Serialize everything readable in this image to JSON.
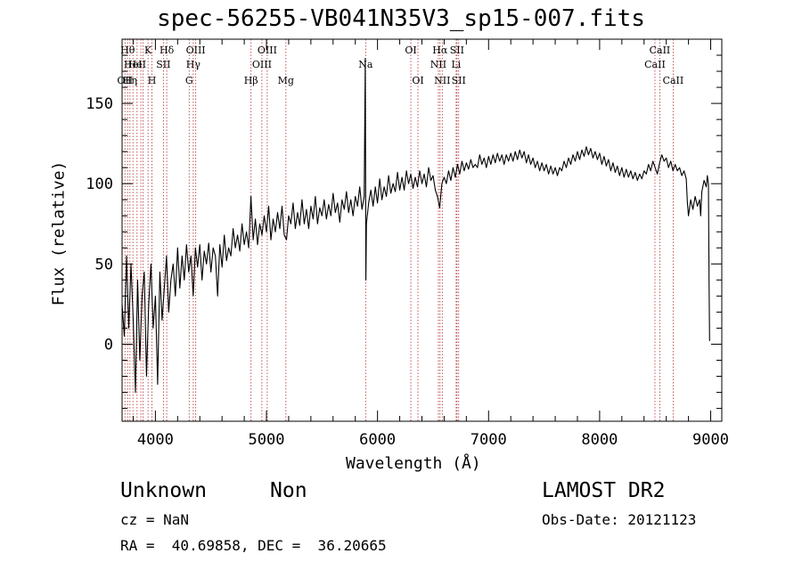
{
  "chart_data": {
    "type": "line",
    "title": "spec-56255-VB041N35V3_sp15-007.fits",
    "xlabel": "Wavelength (Å)",
    "ylabel": "Flux (relative)",
    "xlim": [
      3700,
      9100
    ],
    "ylim": [
      -48,
      190
    ],
    "xticks": [
      4000,
      5000,
      6000,
      7000,
      8000,
      9000
    ],
    "yticks": [
      0,
      50,
      100,
      150
    ],
    "grid": false,
    "line_color": "#000000",
    "marker_color": "#b03030",
    "series": [
      {
        "values": [
          [
            3700,
            25
          ],
          [
            3720,
            5
          ],
          [
            3740,
            55
          ],
          [
            3760,
            10
          ],
          [
            3780,
            50
          ],
          [
            3800,
            15
          ],
          [
            3820,
            -30
          ],
          [
            3840,
            40
          ],
          [
            3860,
            -10
          ],
          [
            3880,
            30
          ],
          [
            3900,
            45
          ],
          [
            3920,
            -20
          ],
          [
            3940,
            25
          ],
          [
            3960,
            50
          ],
          [
            3980,
            10
          ],
          [
            4000,
            30
          ],
          [
            4020,
            -25
          ],
          [
            4040,
            45
          ],
          [
            4060,
            15
          ],
          [
            4080,
            35
          ],
          [
            4100,
            55
          ],
          [
            4120,
            20
          ],
          [
            4140,
            40
          ],
          [
            4160,
            50
          ],
          [
            4180,
            30
          ],
          [
            4200,
            60
          ],
          [
            4220,
            35
          ],
          [
            4240,
            55
          ],
          [
            4260,
            40
          ],
          [
            4280,
            62
          ],
          [
            4300,
            45
          ],
          [
            4320,
            55
          ],
          [
            4340,
            30
          ],
          [
            4360,
            60
          ],
          [
            4380,
            48
          ],
          [
            4400,
            62
          ],
          [
            4420,
            40
          ],
          [
            4440,
            58
          ],
          [
            4460,
            50
          ],
          [
            4480,
            63
          ],
          [
            4500,
            45
          ],
          [
            4520,
            60
          ],
          [
            4540,
            55
          ],
          [
            4560,
            30
          ],
          [
            4580,
            62
          ],
          [
            4600,
            48
          ],
          [
            4620,
            68
          ],
          [
            4640,
            52
          ],
          [
            4660,
            60
          ],
          [
            4680,
            55
          ],
          [
            4700,
            72
          ],
          [
            4720,
            60
          ],
          [
            4740,
            68
          ],
          [
            4760,
            58
          ],
          [
            4780,
            75
          ],
          [
            4800,
            62
          ],
          [
            4820,
            70
          ],
          [
            4840,
            60
          ],
          [
            4860,
            92
          ],
          [
            4880,
            65
          ],
          [
            4900,
            78
          ],
          [
            4920,
            62
          ],
          [
            4940,
            75
          ],
          [
            4960,
            68
          ],
          [
            4980,
            80
          ],
          [
            5000,
            70
          ],
          [
            5020,
            86
          ],
          [
            5040,
            65
          ],
          [
            5060,
            78
          ],
          [
            5080,
            70
          ],
          [
            5100,
            82
          ],
          [
            5120,
            72
          ],
          [
            5140,
            86
          ],
          [
            5160,
            68
          ],
          [
            5180,
            65
          ],
          [
            5200,
            80
          ],
          [
            5220,
            75
          ],
          [
            5240,
            88
          ],
          [
            5260,
            72
          ],
          [
            5280,
            82
          ],
          [
            5300,
            74
          ],
          [
            5320,
            90
          ],
          [
            5340,
            75
          ],
          [
            5360,
            84
          ],
          [
            5380,
            72
          ],
          [
            5400,
            86
          ],
          [
            5420,
            78
          ],
          [
            5440,
            92
          ],
          [
            5460,
            75
          ],
          [
            5480,
            85
          ],
          [
            5500,
            80
          ],
          [
            5520,
            90
          ],
          [
            5540,
            78
          ],
          [
            5560,
            87
          ],
          [
            5580,
            80
          ],
          [
            5600,
            94
          ],
          [
            5620,
            82
          ],
          [
            5640,
            88
          ],
          [
            5660,
            76
          ],
          [
            5680,
            90
          ],
          [
            5700,
            84
          ],
          [
            5720,
            95
          ],
          [
            5740,
            82
          ],
          [
            5760,
            90
          ],
          [
            5780,
            80
          ],
          [
            5800,
            92
          ],
          [
            5820,
            86
          ],
          [
            5840,
            98
          ],
          [
            5860,
            84
          ],
          [
            5880,
            92
          ],
          [
            5890,
            178
          ],
          [
            5895,
            40
          ],
          [
            5900,
            75
          ],
          [
            5920,
            88
          ],
          [
            5940,
            96
          ],
          [
            5960,
            86
          ],
          [
            5980,
            98
          ],
          [
            6000,
            88
          ],
          [
            6020,
            103
          ],
          [
            6040,
            90
          ],
          [
            6060,
            98
          ],
          [
            6080,
            92
          ],
          [
            6100,
            105
          ],
          [
            6120,
            94
          ],
          [
            6140,
            100
          ],
          [
            6160,
            95
          ],
          [
            6180,
            107
          ],
          [
            6200,
            96
          ],
          [
            6220,
            104
          ],
          [
            6240,
            96
          ],
          [
            6260,
            108
          ],
          [
            6280,
            100
          ],
          [
            6300,
            106
          ],
          [
            6320,
            97
          ],
          [
            6340,
            104
          ],
          [
            6360,
            98
          ],
          [
            6380,
            108
          ],
          [
            6400,
            100
          ],
          [
            6420,
            106
          ],
          [
            6440,
            98
          ],
          [
            6460,
            110
          ],
          [
            6480,
            102
          ],
          [
            6500,
            105
          ],
          [
            6520,
            96
          ],
          [
            6540,
            92
          ],
          [
            6560,
            85
          ],
          [
            6580,
            100
          ],
          [
            6600,
            104
          ],
          [
            6620,
            100
          ],
          [
            6640,
            108
          ],
          [
            6660,
            102
          ],
          [
            6680,
            110
          ],
          [
            6700,
            104
          ],
          [
            6720,
            112
          ],
          [
            6740,
            106
          ],
          [
            6760,
            114
          ],
          [
            6780,
            108
          ],
          [
            6800,
            113
          ],
          [
            6820,
            109
          ],
          [
            6840,
            115
          ],
          [
            6860,
            110
          ],
          [
            6880,
            112
          ],
          [
            6900,
            110
          ],
          [
            6920,
            118
          ],
          [
            6940,
            112
          ],
          [
            6960,
            116
          ],
          [
            6980,
            110
          ],
          [
            7000,
            117
          ],
          [
            7020,
            112
          ],
          [
            7040,
            118
          ],
          [
            7060,
            113
          ],
          [
            7080,
            119
          ],
          [
            7100,
            114
          ],
          [
            7120,
            118
          ],
          [
            7140,
            112
          ],
          [
            7160,
            118
          ],
          [
            7180,
            114
          ],
          [
            7200,
            119
          ],
          [
            7220,
            114
          ],
          [
            7240,
            120
          ],
          [
            7260,
            115
          ],
          [
            7280,
            121
          ],
          [
            7300,
            116
          ],
          [
            7320,
            120
          ],
          [
            7340,
            113
          ],
          [
            7360,
            118
          ],
          [
            7380,
            112
          ],
          [
            7400,
            116
          ],
          [
            7420,
            110
          ],
          [
            7440,
            114
          ],
          [
            7460,
            108
          ],
          [
            7480,
            113
          ],
          [
            7500,
            108
          ],
          [
            7520,
            112
          ],
          [
            7540,
            106
          ],
          [
            7560,
            111
          ],
          [
            7580,
            106
          ],
          [
            7600,
            110
          ],
          [
            7620,
            105
          ],
          [
            7640,
            110
          ],
          [
            7660,
            108
          ],
          [
            7680,
            114
          ],
          [
            7700,
            110
          ],
          [
            7720,
            116
          ],
          [
            7740,
            112
          ],
          [
            7760,
            118
          ],
          [
            7780,
            114
          ],
          [
            7800,
            120
          ],
          [
            7820,
            115
          ],
          [
            7840,
            121
          ],
          [
            7860,
            117
          ],
          [
            7880,
            123
          ],
          [
            7900,
            118
          ],
          [
            7920,
            122
          ],
          [
            7940,
            116
          ],
          [
            7960,
            120
          ],
          [
            7980,
            115
          ],
          [
            8000,
            119
          ],
          [
            8020,
            112
          ],
          [
            8040,
            117
          ],
          [
            8060,
            111
          ],
          [
            8080,
            115
          ],
          [
            8100,
            108
          ],
          [
            8120,
            113
          ],
          [
            8140,
            107
          ],
          [
            8160,
            111
          ],
          [
            8180,
            105
          ],
          [
            8200,
            110
          ],
          [
            8220,
            104
          ],
          [
            8240,
            109
          ],
          [
            8260,
            104
          ],
          [
            8280,
            108
          ],
          [
            8300,
            103
          ],
          [
            8320,
            107
          ],
          [
            8340,
            102
          ],
          [
            8360,
            106
          ],
          [
            8380,
            103
          ],
          [
            8400,
            108
          ],
          [
            8420,
            106
          ],
          [
            8440,
            112
          ],
          [
            8460,
            108
          ],
          [
            8480,
            114
          ],
          [
            8500,
            110
          ],
          [
            8520,
            106
          ],
          [
            8540,
            113
          ],
          [
            8560,
            118
          ],
          [
            8580,
            114
          ],
          [
            8600,
            116
          ],
          [
            8620,
            110
          ],
          [
            8640,
            114
          ],
          [
            8660,
            108
          ],
          [
            8680,
            112
          ],
          [
            8700,
            108
          ],
          [
            8720,
            110
          ],
          [
            8740,
            105
          ],
          [
            8760,
            108
          ],
          [
            8780,
            103
          ],
          [
            8790,
            88
          ],
          [
            8800,
            80
          ],
          [
            8820,
            90
          ],
          [
            8840,
            84
          ],
          [
            8860,
            92
          ],
          [
            8880,
            86
          ],
          [
            8900,
            90
          ],
          [
            8910,
            80
          ],
          [
            8920,
            95
          ],
          [
            8940,
            102
          ],
          [
            8960,
            98
          ],
          [
            8970,
            105
          ],
          [
            8980,
            100
          ],
          [
            8985,
            40
          ],
          [
            8990,
            2
          ]
        ]
      }
    ],
    "line_markers": [
      {
        "wl": 3726,
        "label": "OII",
        "row": 2
      },
      {
        "wl": 3750,
        "label": "Hθ",
        "row": 0
      },
      {
        "wl": 3771,
        "label": "Hη",
        "row": 2
      },
      {
        "wl": 3798,
        "label": "HeI",
        "row": 1
      },
      {
        "wl": 3835,
        "label": "HeI",
        "row": 1
      },
      {
        "wl": 3869,
        "label": "",
        "row": -1
      },
      {
        "wl": 3889,
        "label": "",
        "row": -1
      },
      {
        "wl": 3934,
        "label": "K",
        "row": 0
      },
      {
        "wl": 3969,
        "label": "H",
        "row": 2
      },
      {
        "wl": 4072,
        "label": "SII",
        "row": 1
      },
      {
        "wl": 4102,
        "label": "Hδ",
        "row": 0
      },
      {
        "wl": 4304,
        "label": "G",
        "row": 2
      },
      {
        "wl": 4341,
        "label": "Hγ",
        "row": 1
      },
      {
        "wl": 4363,
        "label": "OIII",
        "row": 0
      },
      {
        "wl": 4861,
        "label": "Hβ",
        "row": 2
      },
      {
        "wl": 4959,
        "label": "OIII",
        "row": 1
      },
      {
        "wl": 5007,
        "label": "OIII",
        "row": 0
      },
      {
        "wl": 5175,
        "label": "Mg",
        "row": 2
      },
      {
        "wl": 5893,
        "label": "Na",
        "row": 1
      },
      {
        "wl": 6300,
        "label": "OI",
        "row": 0
      },
      {
        "wl": 6364,
        "label": "OI",
        "row": 2
      },
      {
        "wl": 6548,
        "label": "NII",
        "row": 1
      },
      {
        "wl": 6563,
        "label": "Hα",
        "row": 0
      },
      {
        "wl": 6583,
        "label": "NII",
        "row": 2
      },
      {
        "wl": 6708,
        "label": "Li",
        "row": 1
      },
      {
        "wl": 6716,
        "label": "SII",
        "row": 0
      },
      {
        "wl": 6731,
        "label": "SII",
        "row": 2
      },
      {
        "wl": 8498,
        "label": "CaII",
        "row": 1
      },
      {
        "wl": 8542,
        "label": "CaII",
        "row": 0
      },
      {
        "wl": 8662,
        "label": "CaII",
        "row": 2
      }
    ]
  },
  "info": {
    "object_class": "Unknown",
    "subclass": "Non",
    "survey": "LAMOST DR2",
    "redshift": "cz = NaN",
    "obs_date": "Obs-Date: 20121123",
    "coords": "RA =  40.69858, DEC =  36.20665"
  }
}
